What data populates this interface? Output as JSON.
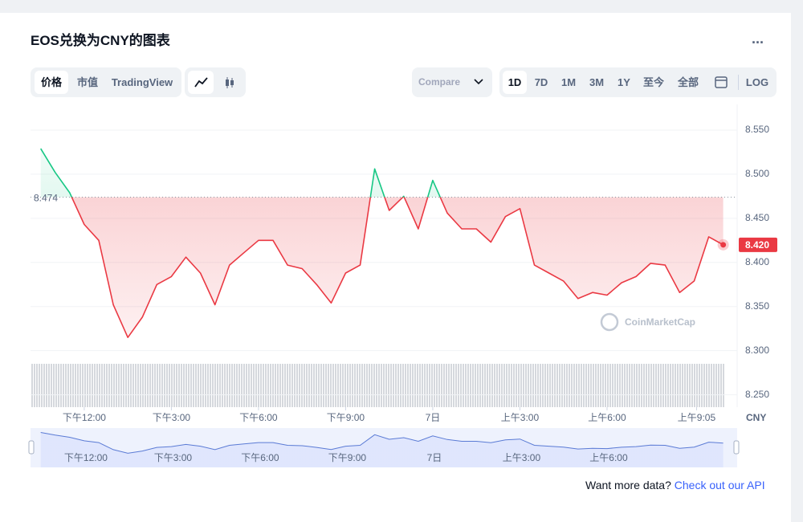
{
  "header": {
    "title": "EOS兑换为CNY的图表",
    "menu": "..."
  },
  "toolbar": {
    "tabs": [
      "价格",
      "市值",
      "TradingView"
    ],
    "compare": "Compare",
    "ranges": [
      "1D",
      "7D",
      "1M",
      "3M",
      "1Y",
      "至今",
      "全部"
    ],
    "log": "LOG"
  },
  "chart_data": {
    "type": "line",
    "x": [
      10.5,
      11,
      11.5,
      12,
      12.5,
      13,
      13.5,
      14,
      14.5,
      15,
      15.5,
      16,
      16.5,
      17,
      17.5,
      18,
      18.5,
      19,
      19.5,
      20,
      20.5,
      21,
      21.5,
      22,
      22.5,
      23,
      23.5,
      24,
      24.5,
      25,
      25.5,
      26,
      26.5,
      27,
      27.5,
      28,
      28.5,
      29,
      29.5,
      30,
      30.5,
      31,
      31.5,
      32,
      32.5,
      33,
      33.5,
      34
    ],
    "series": [
      {
        "values": [
          8.529,
          8.502,
          8.479,
          8.443,
          8.425,
          8.352,
          8.315,
          8.338,
          8.375,
          8.384,
          8.406,
          8.388,
          8.352,
          8.397,
          8.411,
          8.425,
          8.425,
          8.397,
          8.393,
          8.375,
          8.354,
          8.388,
          8.397,
          8.506,
          8.459,
          8.475,
          8.438,
          8.493,
          8.456,
          8.438,
          8.438,
          8.423,
          8.452,
          8.461,
          8.397,
          8.388,
          8.379,
          8.359,
          8.366,
          8.363,
          8.377,
          8.384,
          8.399,
          8.397,
          8.366,
          8.379,
          8.429,
          8.42
        ]
      }
    ],
    "up_color": "#16c784",
    "down_color": "#ea3943",
    "xlim": [
      10.15,
      34.48
    ],
    "xticks": [
      {
        "value": 12,
        "label": "下午12:00"
      },
      {
        "value": 15,
        "label": "下午3:00"
      },
      {
        "value": 18,
        "label": "下午6:00"
      },
      {
        "value": 21,
        "label": "下午9:00"
      },
      {
        "value": 24,
        "label": "7日"
      },
      {
        "value": 27,
        "label": "上午3:00"
      },
      {
        "value": 30,
        "label": "上午6:00"
      },
      {
        "value": 33.083,
        "label": "上午9:05"
      }
    ],
    "ylim": [
      8.236,
      8.57
    ],
    "yticks": [
      {
        "value": 8.55,
        "label": "8.550"
      },
      {
        "value": 8.5,
        "label": "8.500"
      },
      {
        "value": 8.45,
        "label": "8.450"
      },
      {
        "value": 8.4,
        "label": "8.400"
      },
      {
        "value": 8.35,
        "label": "8.350"
      },
      {
        "value": 8.3,
        "label": "8.300"
      },
      {
        "value": 8.25,
        "label": "8.250"
      }
    ],
    "y_unit": "CNY",
    "reference_line": {
      "value": 8.474,
      "label": "8.474"
    },
    "last_price": {
      "value": 8.42,
      "label": "8.420"
    },
    "grid": true,
    "watermark": "CoinMarketCap"
  },
  "footer": {
    "text": "Want more data?",
    "link": "Check out our API"
  }
}
